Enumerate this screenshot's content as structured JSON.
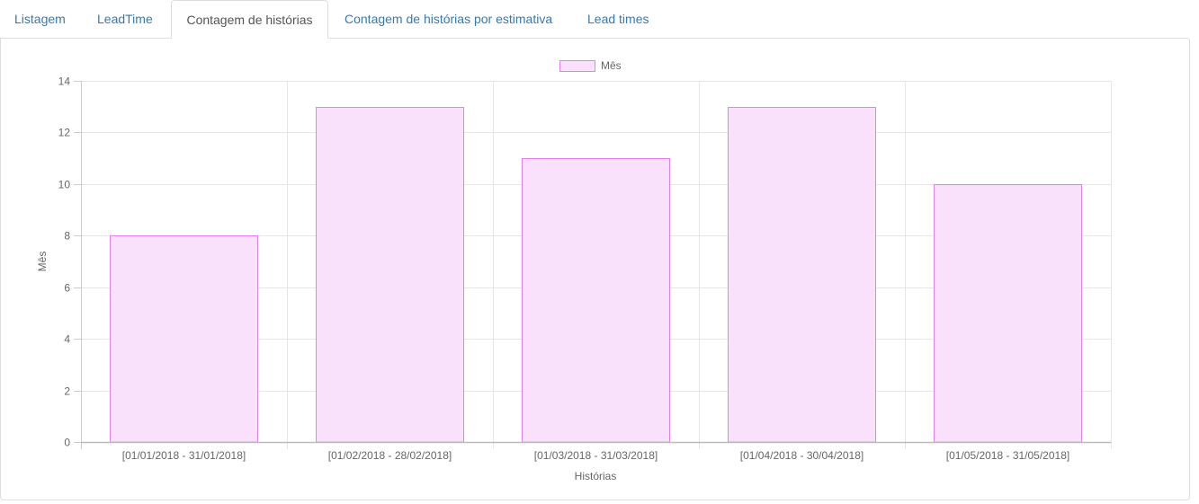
{
  "tabs": [
    {
      "label": "Listagem",
      "active": false
    },
    {
      "label": "LeadTime",
      "active": false
    },
    {
      "label": "Contagem de histórias",
      "active": true
    },
    {
      "label": "Contagem de histórias por estimativa",
      "active": false
    },
    {
      "label": "Lead times",
      "active": false
    }
  ],
  "chart_data": {
    "type": "bar",
    "title": "",
    "categories": [
      "[01/01/2018 - 31/01/2018]",
      "[01/02/2018 - 28/02/2018]",
      "[01/03/2018 - 31/03/2018]",
      "[01/04/2018 - 30/04/2018]",
      "[01/05/2018 - 31/05/2018]"
    ],
    "series": [
      {
        "name": "Mês",
        "values": [
          8,
          13,
          11,
          13,
          10
        ]
      }
    ],
    "xlabel": "Histórias",
    "ylabel": "Mês",
    "ylim": [
      0,
      14
    ],
    "yticks": [
      0,
      2,
      4,
      6,
      8,
      10,
      12,
      14
    ],
    "grid": true,
    "legend_position": "top-center",
    "colors": {
      "bar_fill": "#f9e0fb",
      "bar_stroke": "#e87ff0"
    }
  }
}
